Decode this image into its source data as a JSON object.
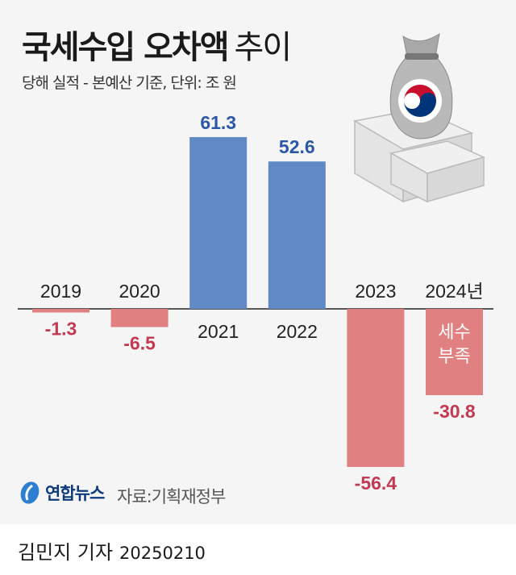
{
  "header": {
    "title_bold": "국세수입 오차액",
    "title_light": "추이",
    "subtitle": "당해 실적 - 본예산 기준, 단위: 조 원"
  },
  "chart_data": {
    "type": "bar",
    "categories": [
      "2019",
      "2020",
      "2021",
      "2022",
      "2023",
      "2024년"
    ],
    "values": [
      -1.3,
      -6.5,
      61.3,
      52.6,
      -56.4,
      -30.8
    ],
    "value_labels": [
      "-1.3",
      "-6.5",
      "61.3",
      "52.6",
      "-56.4",
      "-30.8"
    ],
    "annotation": {
      "category": "2024년",
      "text": [
        "세수",
        "부족"
      ]
    },
    "colors": {
      "positive": "#6089c6",
      "negative": "#e08080",
      "positive_label": "#2b57a6",
      "negative_label": "#c23a52"
    },
    "grid": false,
    "legend": "none"
  },
  "illustration": {
    "name": "money-bag-with-korean-emblem-and-banknote-stacks"
  },
  "footer": {
    "logo_text": "연합뉴스",
    "source": "자료:기획재정부",
    "byline": "김민지 기자",
    "date": "20250210"
  }
}
